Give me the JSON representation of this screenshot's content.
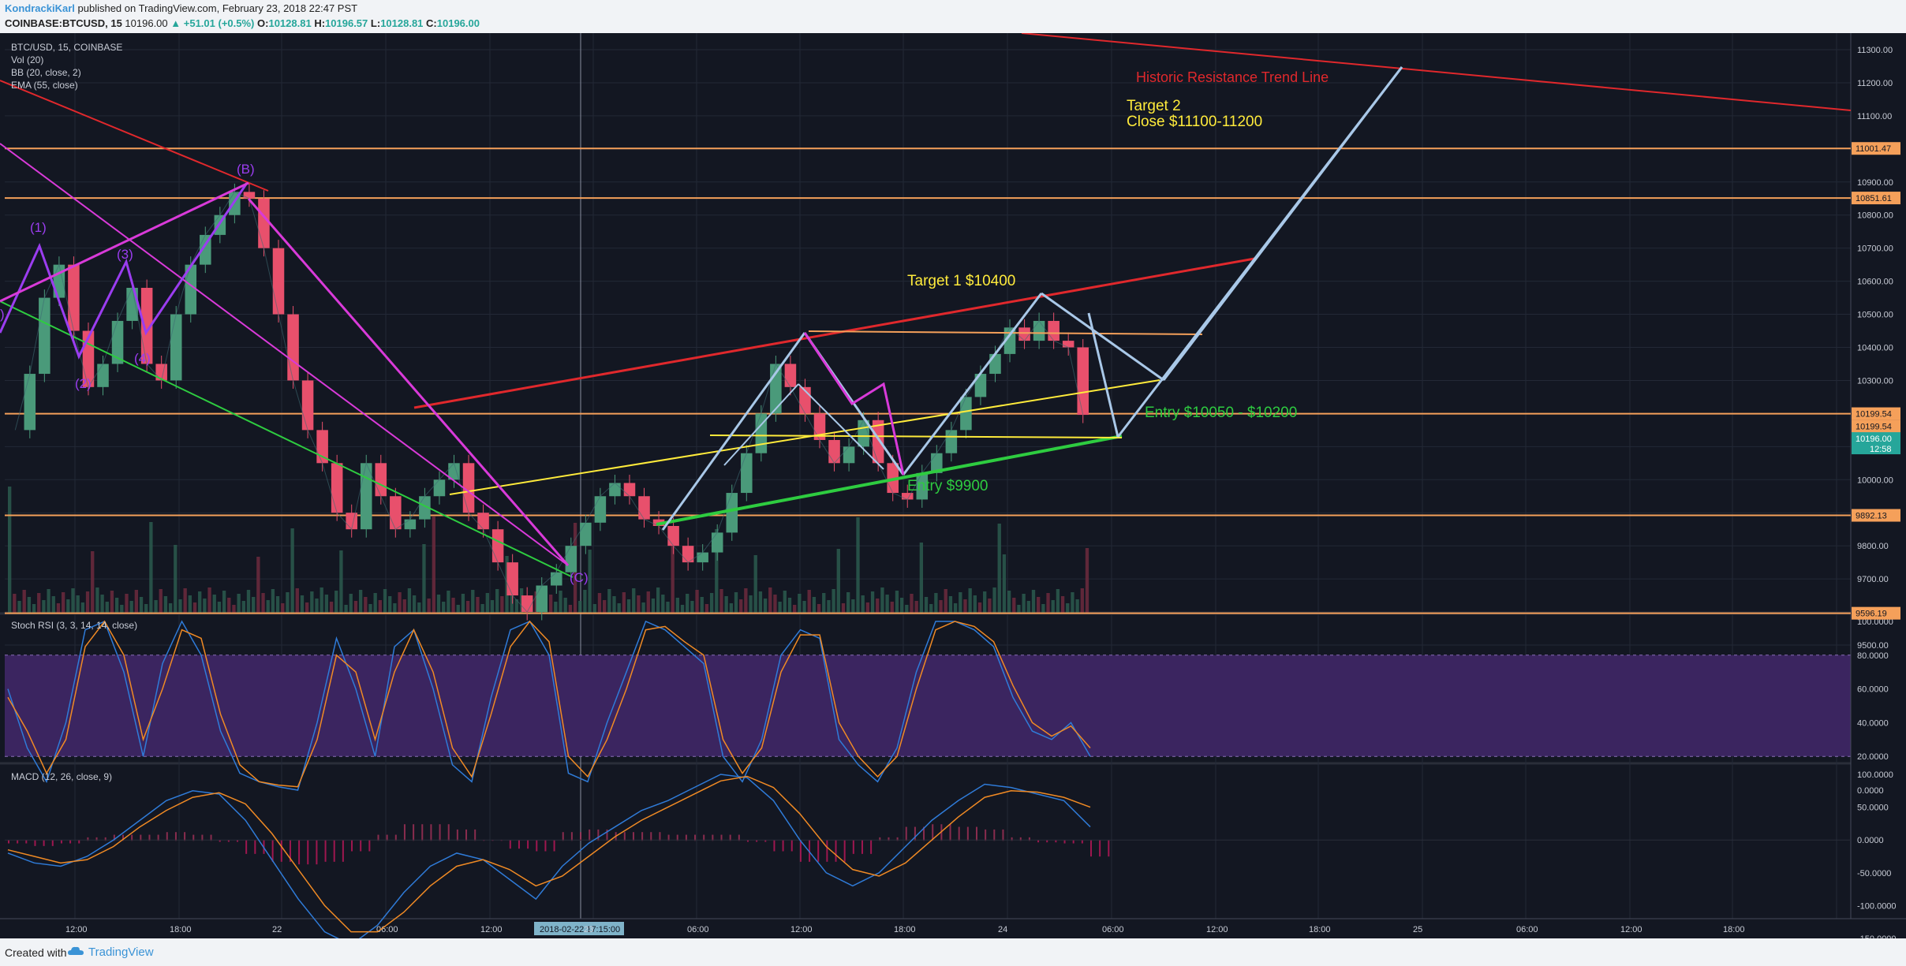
{
  "header": {
    "author": "KondrackiKarl",
    "published": "published on TradingView.com, February 23, 2018 22:47 PST",
    "symbol_line": "COINBASE:BTCUSD, 15",
    "last": "10196.00",
    "change": "▲ +51.01 (+0.5%)",
    "o_label": "O:",
    "o": "10128.81",
    "h_label": "H:",
    "h": "10196.57",
    "l_label": "L:",
    "l": "10128.81",
    "c_label": "C:",
    "c": "10196.00"
  },
  "legend": {
    "pair": "BTC/USD, 15, COINBASE",
    "vol": "Vol (20)",
    "bb": "BB (20, close, 2)",
    "ema": "EMA (55, close)",
    "stoch": "Stoch RSI (3, 3, 14, 14, close)",
    "macd": "MACD (12, 26, close, 9)"
  },
  "footer": {
    "created": "Created with",
    "brand": "TradingView"
  },
  "colors": {
    "bg": "#131722",
    "up": "#4a9a7a",
    "down": "#e8506c",
    "hline": "#f5a05a",
    "target": "#ffeb3b",
    "entry": "#2ecc40",
    "resistance": "#e0282c",
    "pattern": "#a9c8e8"
  },
  "chart_data": [
    {
      "type": "line",
      "title": "BTC/USD, 15, COINBASE",
      "x_ticks": [
        "12:00",
        "18:00",
        "22",
        "06:00",
        "12:00",
        "2018-02-22 17:15:00",
        "23",
        "06:00",
        "12:00",
        "18:00",
        "24",
        "06:00",
        "12:00",
        "18:00",
        "25",
        "06:00",
        "12:00",
        "18:00"
      ],
      "ylim": [
        9450,
        11350
      ],
      "y_ticks": [
        9500,
        9600,
        9700,
        9800,
        9900,
        10000,
        10100,
        10200,
        10300,
        10400,
        10500,
        10600,
        10700,
        10800,
        10900,
        11000,
        11100,
        11200,
        11300
      ],
      "y_tick_labels": [
        "9500.00",
        "9600.00",
        "9700.00",
        "9800.00",
        "9900.00",
        "10000.00",
        "10100.00",
        "10200.00",
        "10300.00",
        "10400.00",
        "10500.00",
        "10600.00",
        "10700.00",
        "10800.00",
        "10900.00",
        "11000.00",
        "11100.00",
        "11200.00",
        "11300.00"
      ],
      "price_close_approx": [
        10150,
        10320,
        10550,
        10650,
        10450,
        10280,
        10350,
        10480,
        10580,
        10350,
        10300,
        10500,
        10650,
        10740,
        10800,
        10870,
        10850,
        10700,
        10500,
        10300,
        10150,
        10050,
        9900,
        9850,
        10050,
        9950,
        9850,
        9880,
        9950,
        10000,
        10050,
        9900,
        9850,
        9750,
        9650,
        9600,
        9680,
        9720,
        9800,
        9870,
        9950,
        9990,
        9950,
        9880,
        9860,
        9800,
        9750,
        9780,
        9840,
        9960,
        10080,
        10200,
        10350,
        10280,
        10200,
        10120,
        10050,
        10100,
        10180,
        10050,
        9960,
        9940,
        10020,
        10080,
        10150,
        10250,
        10320,
        10380,
        10460,
        10420,
        10480,
        10420,
        10400,
        10196
      ],
      "horizontal_levels": [
        {
          "value": 11001.47,
          "label": "11001.47"
        },
        {
          "value": 10851.61,
          "label": "10851.61"
        },
        {
          "value": 10199.54,
          "label": "10199.54"
        },
        {
          "value": 9892.13,
          "label": "9892.13"
        },
        {
          "value": 9596.19,
          "label": "9596.19"
        }
      ],
      "price_labels": [
        "10199.54",
        "10196.00",
        "12:58"
      ],
      "annotations": [
        {
          "text": "Historic Resistance Trend Line",
          "color": "#e0282c"
        },
        {
          "text": "Target 2",
          "color": "#ffeb3b"
        },
        {
          "text": "Close $11100-11200",
          "color": "#ffeb3b"
        },
        {
          "text": "Target 1 $10400",
          "color": "#ffeb3b"
        },
        {
          "text": "Entry $10050 - $10200",
          "color": "#2ecc40"
        },
        {
          "text": "Entry $9900",
          "color": "#2ecc40"
        }
      ],
      "wave_labels": [
        "(1)",
        "(2)",
        "(3)",
        "(4)",
        "(B)",
        "(C)"
      ],
      "wave_label_first": ")"
    },
    {
      "type": "line",
      "title": "Stoch RSI (3, 3, 14, 14, close)",
      "ylim": [
        0,
        100
      ],
      "y_tick_labels": [
        "100.0000",
        "80.0000",
        "60.0000",
        "40.0000",
        "20.0000",
        "0.0000"
      ],
      "band": [
        20,
        80
      ],
      "series": [
        {
          "values": [
            60,
            25,
            5,
            40,
            95,
            100,
            70,
            20,
            75,
            100,
            80,
            35,
            10,
            5,
            2,
            0,
            40,
            90,
            60,
            20,
            85,
            95,
            60,
            15,
            5,
            55,
            95,
            100,
            80,
            10,
            5,
            40,
            70,
            100,
            95,
            85,
            75,
            20,
            5,
            30,
            80,
            95,
            90,
            30,
            15,
            5,
            25,
            70,
            100,
            100,
            95,
            85,
            55,
            35,
            30,
            40,
            20
          ]
        },
        {
          "values": [
            55,
            35,
            10,
            30,
            85,
            100,
            80,
            30,
            60,
            95,
            90,
            45,
            15,
            5,
            3,
            2,
            30,
            80,
            70,
            30,
            70,
            95,
            70,
            25,
            8,
            45,
            85,
            100,
            88,
            20,
            8,
            30,
            60,
            95,
            97,
            88,
            80,
            30,
            10,
            25,
            70,
            92,
            92,
            40,
            20,
            8,
            20,
            60,
            95,
            100,
            97,
            88,
            62,
            40,
            32,
            38,
            25
          ]
        }
      ]
    },
    {
      "type": "line",
      "title": "MACD (12, 26, close, 9)",
      "ylim": [
        -170,
        110
      ],
      "y_tick_labels": [
        "100.0000",
        "50.0000",
        "0.0000",
        "-50.0000",
        "-100.0000",
        "-150.0000"
      ],
      "series": [
        {
          "values": [
            -20,
            -35,
            -40,
            -25,
            0,
            30,
            60,
            75,
            70,
            30,
            -30,
            -90,
            -140,
            -160,
            -130,
            -80,
            -40,
            -20,
            -30,
            -60,
            -90,
            -40,
            -5,
            20,
            45,
            60,
            80,
            100,
            95,
            60,
            0,
            -50,
            -70,
            -50,
            -10,
            30,
            60,
            85,
            80,
            70,
            60,
            20
          ]
        },
        {
          "values": [
            -15,
            -25,
            -35,
            -30,
            -10,
            20,
            45,
            65,
            72,
            55,
            10,
            -45,
            -100,
            -140,
            -140,
            -110,
            -70,
            -40,
            -30,
            -45,
            -70,
            -55,
            -25,
            5,
            30,
            50,
            70,
            90,
            97,
            80,
            40,
            -10,
            -45,
            -55,
            -35,
            0,
            35,
            65,
            75,
            73,
            65,
            50
          ]
        }
      ]
    }
  ]
}
